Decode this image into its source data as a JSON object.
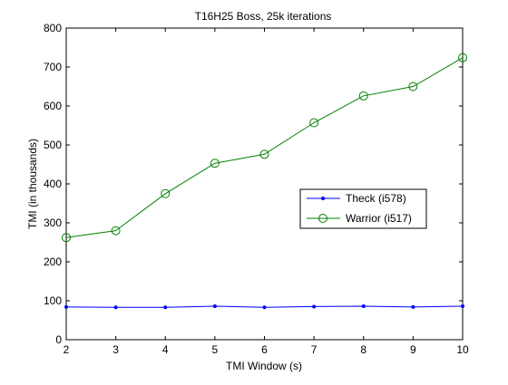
{
  "chart_data": {
    "type": "line",
    "title": "T16H25 Boss, 25k iterations",
    "xlabel": "TMI Window (s)",
    "ylabel": "TMI (in thousands)",
    "xlim": [
      2,
      10
    ],
    "ylim": [
      0,
      800
    ],
    "x_ticks": [
      2,
      3,
      4,
      5,
      6,
      7,
      8,
      9,
      10
    ],
    "y_ticks": [
      0,
      100,
      200,
      300,
      400,
      500,
      600,
      700,
      800
    ],
    "grid": false,
    "legend_position": "center-right",
    "x": [
      2,
      3,
      4,
      5,
      6,
      7,
      8,
      9,
      10
    ],
    "series": [
      {
        "name": "Theck (i578)",
        "color": "#0000ff",
        "marker": "dot",
        "values": [
          84,
          83,
          83,
          86,
          83,
          85,
          86,
          84,
          86
        ]
      },
      {
        "name": "Warrior (i517)",
        "color": "#008000",
        "marker": "circle",
        "values": [
          262,
          280,
          375,
          453,
          476,
          557,
          626,
          650,
          724
        ]
      }
    ]
  }
}
